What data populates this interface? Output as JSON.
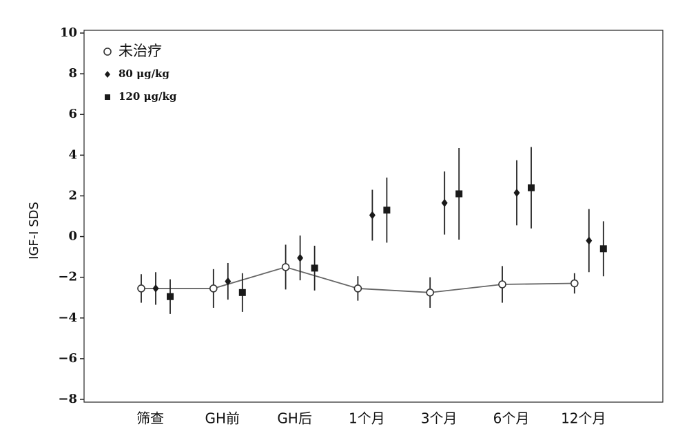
{
  "chart_data": {
    "type": "errorbar",
    "y_label": "IGF-I SDS",
    "categories": [
      "筛查",
      "GH前",
      "GH后",
      "1个月",
      "3个月",
      "6个月",
      "12个月"
    ],
    "series": [
      {
        "name": "未治疗",
        "marker": "circle",
        "color": "#333333",
        "connect": true,
        "values": [
          -2.55,
          -2.55,
          -1.5,
          -2.55,
          -2.75,
          -2.35,
          -2.3
        ],
        "errors": [
          0.7,
          0.95,
          1.1,
          0.6,
          0.75,
          0.9,
          0.5
        ]
      },
      {
        "name": "80 μg/kg",
        "marker": "diamond",
        "color": "#1a1a1a",
        "connect": false,
        "values": [
          -2.55,
          -2.2,
          -1.05,
          1.05,
          1.65,
          2.15,
          -0.2
        ],
        "errors": [
          0.8,
          0.9,
          1.1,
          1.25,
          1.55,
          1.6,
          1.55
        ]
      },
      {
        "name": "120 μg/kg",
        "marker": "square",
        "color": "#1a1a1a",
        "connect": false,
        "values": [
          -2.95,
          -2.75,
          -1.55,
          1.3,
          2.1,
          2.4,
          -0.6
        ],
        "errors": [
          0.85,
          0.95,
          1.1,
          1.6,
          2.25,
          2.0,
          1.35
        ]
      }
    ],
    "ylim": [
      -8,
      10
    ],
    "yticks": [
      {
        "value": -8,
        "label": "−8"
      },
      {
        "value": -6,
        "label": "−6"
      },
      {
        "value": -4,
        "label": "−4"
      },
      {
        "value": -2,
        "label": "−2"
      },
      0,
      2,
      4,
      6,
      8,
      10
    ],
    "legend": "upper-left"
  }
}
